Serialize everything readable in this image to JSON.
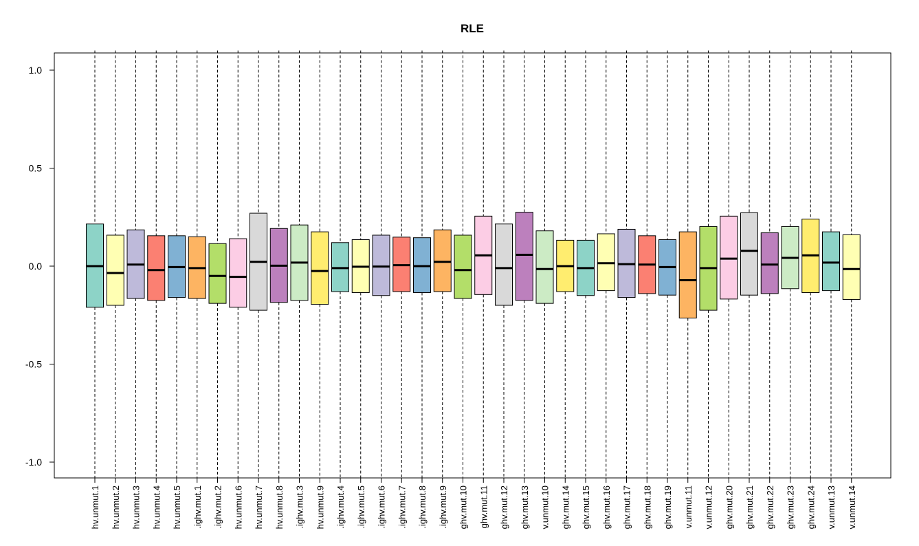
{
  "chart_data": {
    "type": "boxplot",
    "title": "RLE",
    "xlabel": "",
    "ylabel": "",
    "ylim": [
      -1.08,
      1.1
    ],
    "yticks": [
      -1.0,
      -0.5,
      0.0,
      0.5,
      1.0
    ],
    "ytick_labels": [
      "-1.0",
      "-0.5",
      "0.0",
      "0.5",
      "1.0"
    ],
    "whiskers": {
      "lower": -1.08,
      "upper": 1.1,
      "style": "dashed"
    },
    "series": [
      {
        "label": "hv.unmut.1",
        "q1": -0.21,
        "median": 0.0,
        "q3": 0.215,
        "color": "#8DD3C7"
      },
      {
        "label": "hv.unmut.2",
        "q1": -0.2,
        "median": -0.035,
        "q3": 0.158,
        "color": "#FFFFB3"
      },
      {
        "label": "hv.unmut.3",
        "q1": -0.165,
        "median": 0.008,
        "q3": 0.185,
        "color": "#BEBADA"
      },
      {
        "label": "hv.unmut.4",
        "q1": -0.175,
        "median": -0.02,
        "q3": 0.155,
        "color": "#FB8072"
      },
      {
        "label": "hv.unmut.5",
        "q1": -0.16,
        "median": -0.005,
        "q3": 0.155,
        "color": "#80B1D3"
      },
      {
        "label": ".ighv.mut.1",
        "q1": -0.165,
        "median": -0.01,
        "q3": 0.15,
        "color": "#FDB462"
      },
      {
        "label": ".ighv.mut.2",
        "q1": -0.19,
        "median": -0.05,
        "q3": 0.115,
        "color": "#B3DE69"
      },
      {
        "label": "hv.unmut.6",
        "q1": -0.21,
        "median": -0.055,
        "q3": 0.14,
        "color": "#FCCDE5"
      },
      {
        "label": "hv.unmut.7",
        "q1": -0.225,
        "median": 0.022,
        "q3": 0.27,
        "color": "#D9D9D9"
      },
      {
        "label": "hv.unmut.8",
        "q1": -0.185,
        "median": 0.002,
        "q3": 0.192,
        "color": "#BC80BD"
      },
      {
        "label": ".ighv.mut.3",
        "q1": -0.175,
        "median": 0.018,
        "q3": 0.21,
        "color": "#CCEBC5"
      },
      {
        "label": "hv.unmut.9",
        "q1": -0.195,
        "median": -0.025,
        "q3": 0.175,
        "color": "#FFED6F"
      },
      {
        "label": ".ighv.mut.4",
        "q1": -0.13,
        "median": -0.01,
        "q3": 0.12,
        "color": "#8DD3C7"
      },
      {
        "label": ".ighv.mut.5",
        "q1": -0.135,
        "median": -0.003,
        "q3": 0.135,
        "color": "#FFFFB3"
      },
      {
        "label": ".ighv.mut.6",
        "q1": -0.15,
        "median": -0.002,
        "q3": 0.158,
        "color": "#BEBADA"
      },
      {
        "label": ".ighv.mut.7",
        "q1": -0.13,
        "median": 0.005,
        "q3": 0.148,
        "color": "#FB8072"
      },
      {
        "label": ".ighv.mut.8",
        "q1": -0.135,
        "median": 0.0,
        "q3": 0.145,
        "color": "#80B1D3"
      },
      {
        "label": ".ighv.mut.9",
        "q1": -0.13,
        "median": 0.022,
        "q3": 0.185,
        "color": "#FDB462"
      },
      {
        "label": "ghv.mut.10",
        "q1": -0.165,
        "median": -0.02,
        "q3": 0.158,
        "color": "#B3DE69"
      },
      {
        "label": "ghv.mut.11",
        "q1": -0.145,
        "median": 0.055,
        "q3": 0.255,
        "color": "#FCCDE5"
      },
      {
        "label": "ghv.mut.12",
        "q1": -0.2,
        "median": -0.01,
        "q3": 0.215,
        "color": "#D9D9D9"
      },
      {
        "label": "ghv.mut.13",
        "q1": -0.175,
        "median": 0.058,
        "q3": 0.275,
        "color": "#BC80BD"
      },
      {
        "label": "v.unmut.10",
        "q1": -0.19,
        "median": -0.015,
        "q3": 0.18,
        "color": "#CCEBC5"
      },
      {
        "label": "ghv.mut.14",
        "q1": -0.13,
        "median": 0.0,
        "q3": 0.132,
        "color": "#FFED6F"
      },
      {
        "label": "ghv.mut.15",
        "q1": -0.15,
        "median": -0.01,
        "q3": 0.132,
        "color": "#8DD3C7"
      },
      {
        "label": "ghv.mut.16",
        "q1": -0.125,
        "median": 0.015,
        "q3": 0.165,
        "color": "#FFFFB3"
      },
      {
        "label": "ghv.mut.17",
        "q1": -0.16,
        "median": 0.01,
        "q3": 0.188,
        "color": "#BEBADA"
      },
      {
        "label": "ghv.mut.18",
        "q1": -0.14,
        "median": 0.008,
        "q3": 0.155,
        "color": "#FB8072"
      },
      {
        "label": "ghv.mut.19",
        "q1": -0.148,
        "median": -0.005,
        "q3": 0.135,
        "color": "#80B1D3"
      },
      {
        "label": "v.unmut.11",
        "q1": -0.265,
        "median": -0.072,
        "q3": 0.175,
        "color": "#FDB462"
      },
      {
        "label": "v.unmut.12",
        "q1": -0.225,
        "median": -0.01,
        "q3": 0.202,
        "color": "#B3DE69"
      },
      {
        "label": "ghv.mut.20",
        "q1": -0.168,
        "median": 0.038,
        "q3": 0.255,
        "color": "#FCCDE5"
      },
      {
        "label": "ghv.mut.21",
        "q1": -0.148,
        "median": 0.078,
        "q3": 0.272,
        "color": "#D9D9D9"
      },
      {
        "label": "ghv.mut.22",
        "q1": -0.14,
        "median": 0.008,
        "q3": 0.17,
        "color": "#BC80BD"
      },
      {
        "label": "ghv.mut.23",
        "q1": -0.115,
        "median": 0.042,
        "q3": 0.202,
        "color": "#CCEBC5"
      },
      {
        "label": "ghv.mut.24",
        "q1": -0.135,
        "median": 0.055,
        "q3": 0.24,
        "color": "#FFED6F"
      },
      {
        "label": "v.unmut.13",
        "q1": -0.125,
        "median": 0.018,
        "q3": 0.175,
        "color": "#8DD3C7"
      },
      {
        "label": "v.unmut.14",
        "q1": -0.17,
        "median": -0.015,
        "q3": 0.16,
        "color": "#FFFFB3"
      }
    ],
    "grid": false,
    "legend": "none"
  }
}
